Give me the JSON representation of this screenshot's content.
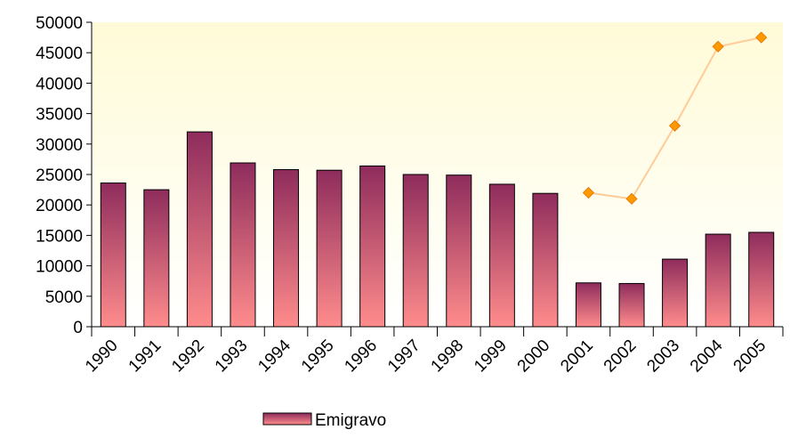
{
  "chart_data": {
    "type": "bar",
    "categories": [
      "1990",
      "1991",
      "1992",
      "1993",
      "1994",
      "1995",
      "1996",
      "1997",
      "1998",
      "1999",
      "2000",
      "2001",
      "2002",
      "2003",
      "2004",
      "2005"
    ],
    "series": [
      {
        "name": "Emigravo",
        "type": "bar",
        "color": "#993366",
        "values": [
          23600,
          22500,
          32000,
          26900,
          25800,
          25700,
          26400,
          25000,
          24900,
          23400,
          21900,
          7200,
          7100,
          11100,
          15200,
          15500
        ]
      },
      {
        "type": "line",
        "color": "#ffcc99",
        "marker_color": "#ff9900",
        "values": [
          null,
          null,
          null,
          null,
          null,
          null,
          null,
          null,
          null,
          null,
          null,
          22000,
          21000,
          33000,
          46000,
          47500
        ]
      }
    ],
    "ylim": [
      0,
      50000
    ],
    "yticks": [
      0,
      5000,
      10000,
      15000,
      20000,
      25000,
      30000,
      35000,
      40000,
      45000,
      50000
    ],
    "grid": false
  }
}
